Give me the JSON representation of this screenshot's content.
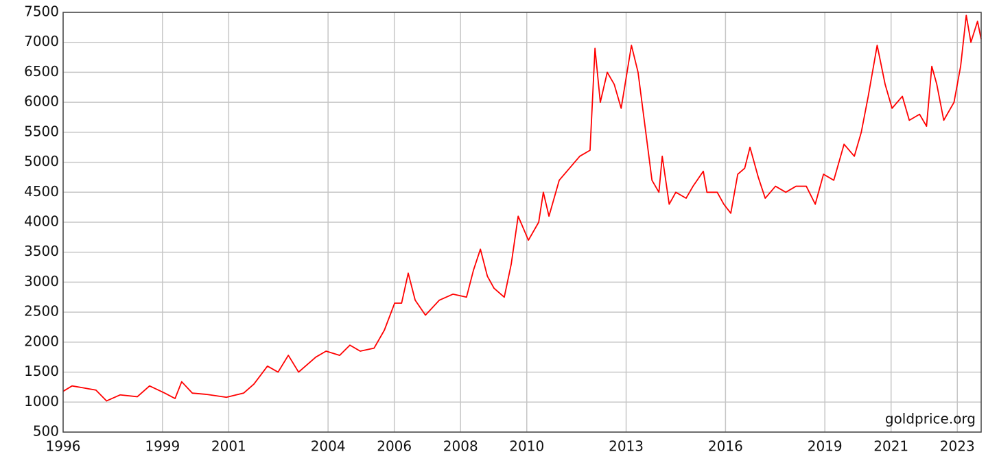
{
  "chart_data": {
    "type": "line",
    "annotation": "goldprice.org",
    "x": [
      1996.0,
      1996.27,
      1996.58,
      1996.99,
      1997.31,
      1997.72,
      1998.24,
      1998.61,
      1999.07,
      1999.38,
      1999.58,
      1999.9,
      2000.31,
      2000.93,
      2001.45,
      2001.76,
      2002.17,
      2002.49,
      2002.8,
      2003.11,
      2003.63,
      2003.94,
      2004.35,
      2004.66,
      2004.97,
      2005.39,
      2005.7,
      2006.01,
      2006.22,
      2006.42,
      2006.63,
      2006.94,
      2007.36,
      2007.77,
      2008.18,
      2008.39,
      2008.6,
      2008.81,
      2009.01,
      2009.32,
      2009.53,
      2009.74,
      2010.05,
      2010.36,
      2010.5,
      2010.67,
      2010.98,
      2011.29,
      2011.6,
      2011.91,
      2012.06,
      2012.22,
      2012.43,
      2012.64,
      2012.85,
      2013.16,
      2013.36,
      2013.57,
      2013.78,
      2013.99,
      2014.09,
      2014.3,
      2014.5,
      2014.81,
      2015.02,
      2015.33,
      2015.44,
      2015.75,
      2015.95,
      2016.16,
      2016.37,
      2016.58,
      2016.74,
      2016.99,
      2017.2,
      2017.51,
      2017.82,
      2018.13,
      2018.44,
      2018.71,
      2018.96,
      2019.27,
      2019.58,
      2019.89,
      2020.1,
      2020.31,
      2020.58,
      2020.82,
      2021.03,
      2021.34,
      2021.55,
      2021.86,
      2022.07,
      2022.23,
      2022.38,
      2022.59,
      2022.9,
      2023.1,
      2023.27,
      2023.41,
      2023.61,
      2023.72
    ],
    "series": [
      {
        "color": "#ff0000",
        "values": [
          1180,
          1270,
          1240,
          1200,
          1020,
          1120,
          1090,
          1270,
          1150,
          1060,
          1340,
          1150,
          1130,
          1080,
          1150,
          1300,
          1600,
          1500,
          1780,
          1500,
          1750,
          1850,
          1780,
          1950,
          1850,
          1900,
          2200,
          2650,
          2650,
          3150,
          2700,
          2450,
          2700,
          2800,
          2750,
          3200,
          3550,
          3100,
          2900,
          2750,
          3300,
          4100,
          3700,
          4000,
          4500,
          4100,
          4700,
          4900,
          5100,
          5200,
          6900,
          6000,
          6500,
          6300,
          5900,
          6950,
          6500,
          5600,
          4700,
          4500,
          5100,
          4300,
          4500,
          4400,
          4600,
          4850,
          4500,
          4500,
          4300,
          4150,
          4800,
          4900,
          5250,
          4750,
          4400,
          4600,
          4500,
          4600,
          4600,
          4300,
          4800,
          4700,
          5300,
          5100,
          5500,
          6100,
          6950,
          6300,
          5900,
          6100,
          5700,
          5800,
          5600,
          6600,
          6300,
          5700,
          6000,
          6600,
          7450,
          7000,
          7350,
          7050
        ]
      }
    ],
    "xlim": [
      1996,
      2023.72
    ],
    "xticks": [
      1996,
      1999,
      2001,
      2004,
      2006,
      2008,
      2010,
      2013,
      2016,
      2019,
      2021,
      2023
    ],
    "ylim": [
      500,
      7500
    ],
    "yticks": [
      500,
      1000,
      1500,
      2000,
      2500,
      3000,
      3500,
      4000,
      4500,
      5000,
      5500,
      6000,
      6500,
      7000,
      7500
    ],
    "grid": true
  }
}
